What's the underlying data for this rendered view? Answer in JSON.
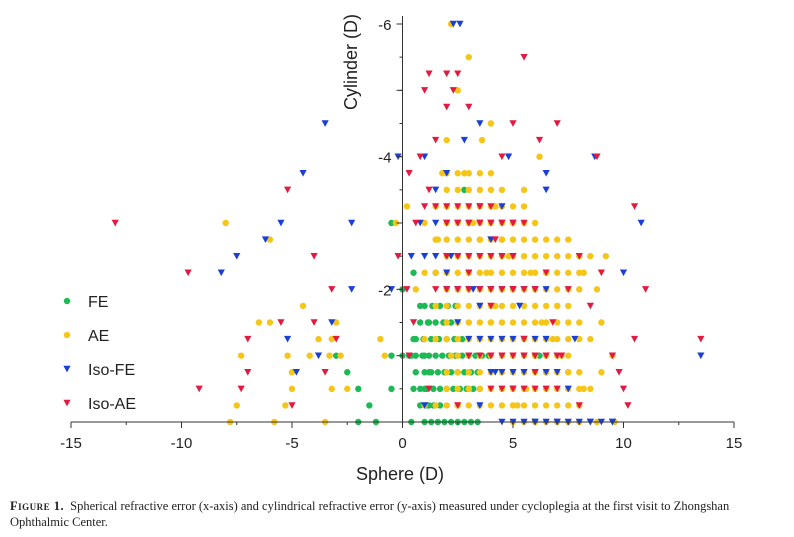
{
  "chart_data": {
    "type": "scatter",
    "xlabel": "Sphere (D)",
    "ylabel": "Cylinder (D)",
    "xlim": [
      -15,
      15
    ],
    "ylim": [
      0,
      -6
    ],
    "x_ticks": [
      -15,
      -10,
      -5,
      0,
      5,
      10,
      15
    ],
    "y_ticks": [
      -2,
      -4,
      -6
    ],
    "legend_position": "left",
    "series": [
      {
        "name": "FE",
        "marker": "circle",
        "color": "#1db954",
        "points": [
          [
            -3.0,
            -1.0
          ],
          [
            -2.5,
            -0.75
          ],
          [
            -2.0,
            -0.5
          ],
          [
            -1.5,
            -0.25
          ],
          [
            -2.0,
            0
          ],
          [
            -1.2,
            0
          ],
          [
            -0.5,
            -1.0
          ],
          [
            -0.5,
            -0.5
          ],
          [
            -0.5,
            -3.0
          ],
          [
            0,
            -2.0
          ],
          [
            0.5,
            -2.25
          ],
          [
            1.5,
            -2.25
          ],
          [
            2.5,
            -2.5
          ],
          [
            2.8,
            -3.5
          ],
          [
            0.8,
            -1.75
          ],
          [
            1.2,
            -1.5
          ],
          [
            0.5,
            -1.25
          ],
          [
            1.0,
            -1.0
          ],
          [
            0.4,
            -1.0
          ],
          [
            0.6,
            -0.75
          ],
          [
            1.2,
            -0.75
          ],
          [
            1.0,
            -0.5
          ],
          [
            1.2,
            -0.25
          ],
          [
            0.4,
            0
          ],
          [
            6.5,
            -1.25
          ],
          [
            6.2,
            -1.0
          ],
          [
            6.5,
            -0.75
          ]
        ],
        "rows": [
          [
            0,
            -1.0,
            4.0,
            0.3
          ],
          [
            0.5,
            -0.5,
            3.5,
            0.3
          ],
          [
            0.8,
            -0.25,
            1.7,
            0.3
          ],
          [
            1,
            0,
            3.6,
            0.3
          ],
          [
            1,
            -0.75,
            3.5,
            0.3
          ],
          [
            0.6,
            -1.25,
            3.0,
            0.35
          ],
          [
            0.8,
            -1.5,
            2.5,
            0.35
          ],
          [
            1.0,
            -1.75,
            2.5,
            0.35
          ]
        ]
      },
      {
        "name": "AE",
        "marker": "circle",
        "color": "#f5c518",
        "points": [
          [
            -8.0,
            -3.0
          ],
          [
            -7.8,
            0
          ],
          [
            -7.5,
            -0.25
          ],
          [
            -7.3,
            -1.0
          ],
          [
            -6.5,
            -1.5
          ],
          [
            -6.0,
            -2.75
          ],
          [
            -6.0,
            -1.5
          ],
          [
            -5.8,
            0
          ],
          [
            -5.2,
            -1.0
          ],
          [
            -5.0,
            -0.75
          ],
          [
            -5.0,
            -0.5
          ],
          [
            -4.5,
            -1.75
          ],
          [
            -4.2,
            -1.0
          ],
          [
            -3.8,
            -1.25
          ],
          [
            -3.5,
            0
          ],
          [
            -3.3,
            -1.0
          ],
          [
            -3.2,
            -1.25
          ],
          [
            -3.0,
            -1.5
          ],
          [
            -2.8,
            -1.0
          ],
          [
            -2.5,
            -0.5
          ],
          [
            -1.0,
            -1.25
          ],
          [
            -0.8,
            -1.0
          ],
          [
            -0.3,
            -3.0
          ],
          [
            0.2,
            -3.25
          ],
          [
            2.2,
            -6.0
          ],
          [
            3.0,
            -5.5
          ],
          [
            2.5,
            -5.0
          ],
          [
            4.0,
            -4.5
          ],
          [
            2.0,
            -4.25
          ],
          [
            1.8,
            -3.75
          ],
          [
            1.5,
            -3.25
          ],
          [
            1.0,
            -3.0
          ],
          [
            8.5,
            -0.5
          ],
          [
            9.0,
            -0.75
          ],
          [
            9.5,
            -1.0
          ],
          [
            9.0,
            -1.5
          ],
          [
            8.8,
            -2.0
          ],
          [
            9.2,
            -2.5
          ],
          [
            8.2,
            -2.25
          ],
          [
            7.0,
            -1.75
          ],
          [
            6.8,
            -1.25
          ],
          [
            6.0,
            -1.0
          ],
          [
            7.5,
            -0.75
          ],
          [
            8.0,
            -0.25
          ],
          [
            9.6,
            0
          ],
          [
            6.2,
            -4.0
          ],
          [
            5.5,
            -3.5
          ],
          [
            5.0,
            -3.0
          ],
          [
            4.8,
            -2.5
          ],
          [
            4.5,
            -2.0
          ],
          [
            4.0,
            -1.5
          ],
          [
            3.5,
            -1.25
          ],
          [
            3.0,
            -0.5
          ],
          [
            2.5,
            -0.25
          ],
          [
            5.2,
            -0.25
          ],
          [
            5.6,
            -0.5
          ],
          [
            4.2,
            -1.75
          ],
          [
            3.8,
            -2.25
          ],
          [
            3.5,
            -2.75
          ],
          [
            3.2,
            -3.0
          ],
          [
            2.8,
            -3.75
          ],
          [
            3.6,
            -4.25
          ],
          [
            4.2,
            -3.25
          ],
          [
            4.5,
            -2.75
          ],
          [
            5.8,
            -2.25
          ],
          [
            6.3,
            -1.5
          ],
          [
            7.2,
            -1.0
          ],
          [
            8.2,
            -0.5
          ],
          [
            8.8,
            0
          ],
          [
            -5.3,
            -0.25
          ],
          [
            -3.2,
            -0.5
          ],
          [
            0.6,
            -2.0
          ],
          [
            1.6,
            -2.75
          ],
          [
            2.2,
            -1.0
          ]
        ],
        "rows": [
          [
            1,
            -0.25,
            7.8,
            0.5
          ],
          [
            2,
            -0.5,
            8.0,
            0.5
          ],
          [
            2,
            -0.75,
            8.2,
            0.5
          ],
          [
            2.5,
            -1.0,
            7.5,
            0.5
          ],
          [
            1,
            -1.25,
            8.5,
            0.5
          ],
          [
            2,
            -1.5,
            8.0,
            0.5
          ],
          [
            1.5,
            -1.75,
            7.8,
            0.5
          ],
          [
            2,
            -2.0,
            8.0,
            0.5
          ],
          [
            1,
            -2.25,
            8.0,
            0.5
          ],
          [
            2,
            -2.5,
            8.5,
            0.5
          ],
          [
            1.5,
            -2.75,
            7.5,
            0.5
          ],
          [
            2,
            -3.0,
            6.0,
            0.5
          ],
          [
            1.5,
            -3.25,
            5.5,
            0.5
          ],
          [
            2,
            -3.5,
            4.5,
            0.5
          ],
          [
            2,
            -3.75,
            4.0,
            0.5
          ],
          [
            5,
            0,
            8.0,
            0.5
          ]
        ]
      },
      {
        "name": "Iso-FE",
        "marker": "triangle-down",
        "color": "#1a3fd6",
        "points": [
          [
            -6.2,
            -2.75
          ],
          [
            -5.2,
            -1.25
          ],
          [
            -3.5,
            -4.5
          ],
          [
            -4.5,
            -3.75
          ],
          [
            -5.5,
            -3.0
          ],
          [
            -7.5,
            -2.5
          ],
          [
            -8.2,
            -2.25
          ],
          [
            -4.8,
            -0.75
          ],
          [
            -3.2,
            -1.5
          ],
          [
            -2.3,
            -2.0
          ],
          [
            -2.3,
            -3.0
          ],
          [
            -3.8,
            -1.0
          ],
          [
            -0.2,
            -4.0
          ],
          [
            2.3,
            -6.0
          ],
          [
            2.6,
            -6.0
          ],
          [
            1.0,
            -0.25
          ],
          [
            3.5,
            -0.25
          ],
          [
            6.0,
            0
          ],
          [
            7.0,
            0
          ],
          [
            8.5,
            0
          ],
          [
            9.5,
            0
          ],
          [
            10.0,
            -2.25
          ],
          [
            13.5,
            -1.0
          ],
          [
            10.8,
            -3.0
          ],
          [
            8.7,
            -4.0
          ],
          [
            7.8,
            -1.25
          ],
          [
            6.5,
            -3.75
          ],
          [
            6.5,
            -3.5
          ],
          [
            4.8,
            -4.0
          ],
          [
            3.5,
            -4.5
          ],
          [
            2.8,
            -4.25
          ],
          [
            2.0,
            -3.75
          ],
          [
            1.5,
            -3.5
          ],
          [
            4.5,
            -3.25
          ],
          [
            5.0,
            -2.5
          ],
          [
            5.3,
            -1.75
          ],
          [
            3.2,
            -2.0
          ],
          [
            2.0,
            -2.25
          ],
          [
            4.0,
            -2.75
          ],
          [
            5.5,
            -1.0
          ],
          [
            3.0,
            -1.0
          ],
          [
            7.5,
            -0.5
          ],
          [
            4.2,
            -0.75
          ],
          [
            2.5,
            -1.5
          ],
          [
            0.8,
            -3.0
          ],
          [
            0.4,
            -2.5
          ],
          [
            1.0,
            -4.0
          ],
          [
            -0.5,
            -2.0
          ],
          [
            3.5,
            -1.75
          ],
          [
            2.2,
            -2.5
          ]
        ],
        "rows": [
          [
            1.5,
            -3.0,
            5.0,
            0.5
          ],
          [
            1,
            -2.5,
            4.5,
            0.5
          ],
          [
            2,
            -2.0,
            6.5,
            0.5
          ],
          [
            3,
            -1.25,
            6.5,
            0.5
          ],
          [
            4,
            -0.75,
            7.0,
            0.5
          ],
          [
            4.5,
            0,
            9.5,
            0.5
          ],
          [
            4,
            -1.0,
            7.0,
            0.5
          ]
        ]
      },
      {
        "name": "Iso-AE",
        "marker": "triangle-down",
        "color": "#e4193f",
        "points": [
          [
            -13.0,
            -3.0
          ],
          [
            -9.7,
            -2.25
          ],
          [
            -9.2,
            -0.5
          ],
          [
            -7.3,
            -0.5
          ],
          [
            -7.0,
            -1.25
          ],
          [
            -7.0,
            -0.75
          ],
          [
            -5.2,
            -3.5
          ],
          [
            -5.5,
            -1.5
          ],
          [
            -5.0,
            -0.25
          ],
          [
            -4.0,
            -1.5
          ],
          [
            -4.0,
            -2.5
          ],
          [
            -3.5,
            -0.75
          ],
          [
            -3.2,
            -2.0
          ],
          [
            -3.0,
            -1.25
          ],
          [
            1.2,
            -5.25
          ],
          [
            2.0,
            -5.25
          ],
          [
            2.5,
            -5.25
          ],
          [
            5.5,
            -5.5
          ],
          [
            1.0,
            -5.0
          ],
          [
            2.3,
            -5.0
          ],
          [
            7.0,
            -4.5
          ],
          [
            8.8,
            -4.0
          ],
          [
            10.5,
            -3.25
          ],
          [
            11.0,
            -2.0
          ],
          [
            13.5,
            -1.25
          ],
          [
            10.5,
            -1.25
          ],
          [
            10.0,
            -0.5
          ],
          [
            8.5,
            -1.75
          ],
          [
            9.5,
            -1.0
          ],
          [
            9.8,
            -0.75
          ],
          [
            10.2,
            -0.25
          ],
          [
            6.2,
            -4.25
          ],
          [
            5.0,
            -4.5
          ],
          [
            4.5,
            -4.0
          ],
          [
            3.0,
            -4.75
          ],
          [
            2.0,
            -4.75
          ],
          [
            1.5,
            -4.25
          ],
          [
            0.8,
            -4.0
          ],
          [
            0.3,
            -3.75
          ],
          [
            1.2,
            -3.5
          ],
          [
            0.6,
            -3.0
          ],
          [
            -0.2,
            -2.5
          ],
          [
            0.2,
            -2.0
          ],
          [
            0.5,
            -1.5
          ],
          [
            0.3,
            -1.0
          ],
          [
            1.2,
            -0.5
          ],
          [
            8.0,
            -2.5
          ],
          [
            7.5,
            -2.0
          ],
          [
            6.8,
            -1.5
          ],
          [
            5.5,
            -1.25
          ],
          [
            7.2,
            -1.0
          ],
          [
            6.0,
            -0.75
          ],
          [
            5.0,
            -0.5
          ],
          [
            2.5,
            -0.25
          ],
          [
            4.0,
            -1.75
          ],
          [
            3.0,
            -2.25
          ],
          [
            5.0,
            -2.0
          ],
          [
            4.2,
            -2.75
          ],
          [
            3.5,
            -3.25
          ],
          [
            5.5,
            -3.0
          ],
          [
            8.0,
            -0.25
          ],
          [
            9.0,
            -2.25
          ],
          [
            6.5,
            -2.25
          ]
        ],
        "rows": [
          [
            1,
            -3.25,
            4.0,
            0.5
          ],
          [
            2,
            -3.0,
            5.0,
            0.5
          ],
          [
            2,
            -2.5,
            5.0,
            0.5
          ],
          [
            1.5,
            -2.0,
            6.0,
            0.5
          ],
          [
            3,
            -1.0,
            7.0,
            0.5
          ],
          [
            4,
            -0.5,
            7.0,
            0.5
          ]
        ]
      }
    ]
  },
  "caption": {
    "label": "Figure 1.",
    "text": "Spherical refractive error (x-axis) and cylindrical refractive error (y-axis) measured under cycloplegia at the first visit to Zhongshan Ophthalmic Center."
  }
}
